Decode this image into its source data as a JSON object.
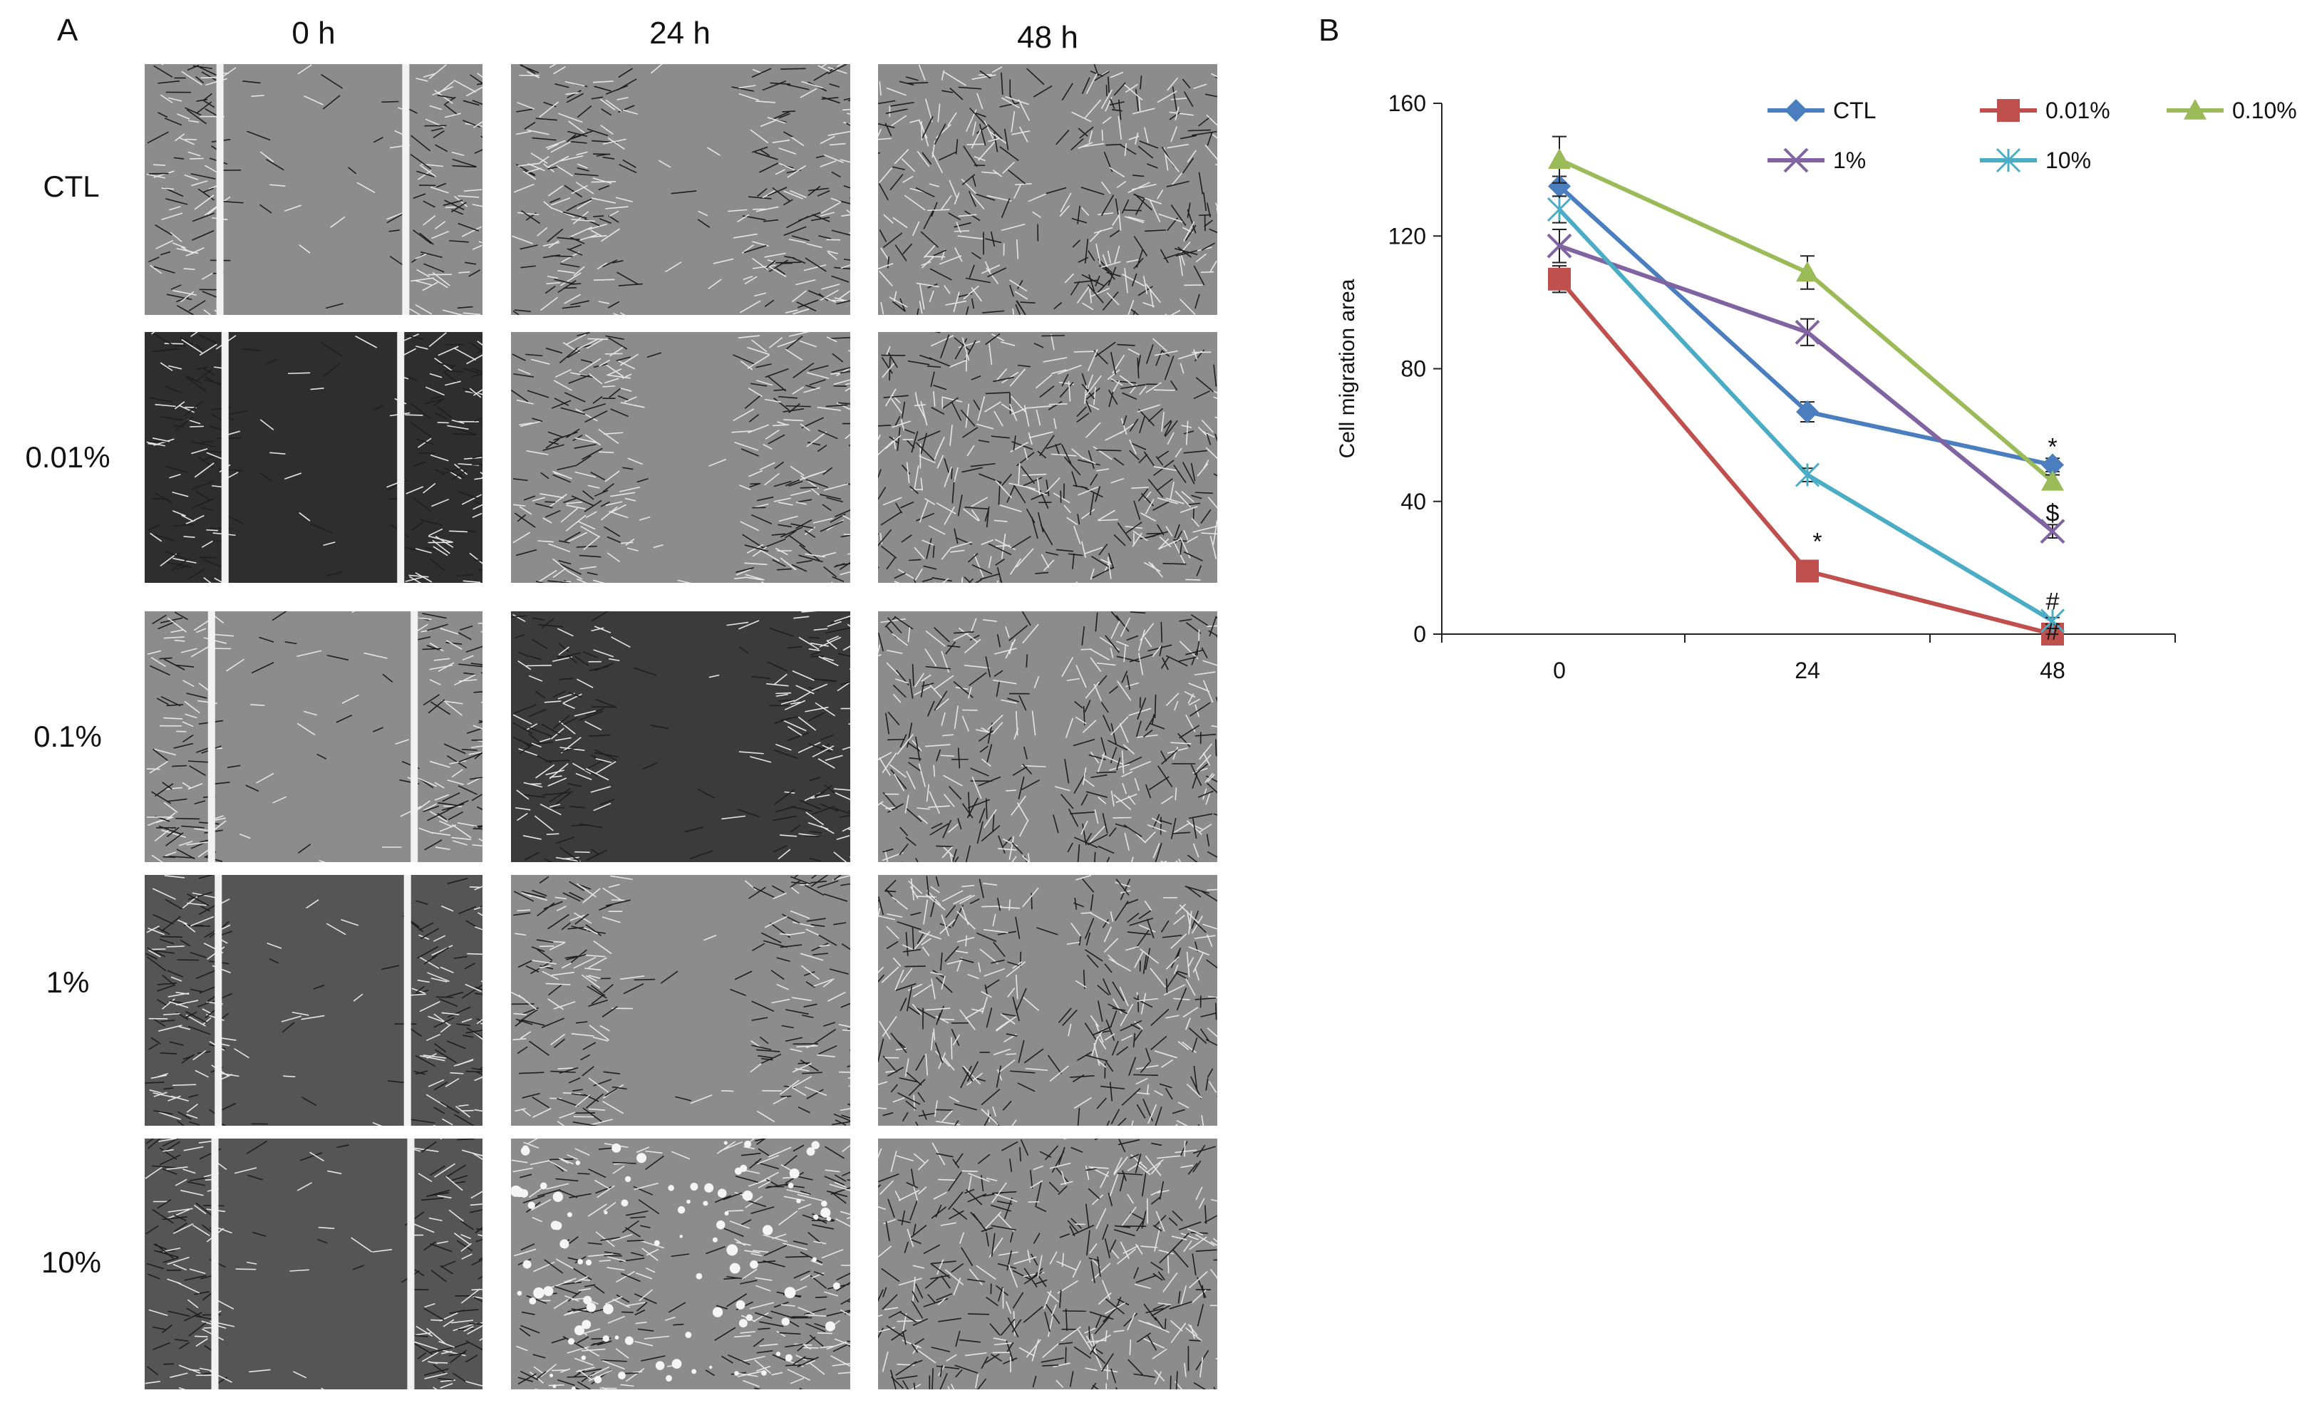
{
  "panels": {
    "a_label": "A",
    "b_label": "B"
  },
  "micrographs": {
    "columns": [
      "0 h",
      "24 h",
      "48 h"
    ],
    "rows": [
      "CTL",
      "0.01%",
      "0.1%",
      "1%",
      "10%"
    ]
  },
  "colors": {
    "CTL": "#4a7ebf",
    "0.01%": "#c0504d",
    "0.10%": "#9bbb59",
    "1%": "#8064a2",
    "10%": "#4bacc6"
  },
  "chart_data": {
    "type": "line",
    "ylabel": "Cell migration area",
    "xlabel": "",
    "categories": [
      "0",
      "24",
      "48"
    ],
    "ylim": [
      0,
      160
    ],
    "yticks": [
      "0",
      "40",
      "80",
      "120",
      "160"
    ],
    "legend_position": "top-right",
    "grid": false,
    "series": [
      {
        "name": "CTL",
        "values": [
          135,
          67,
          51
        ],
        "errors": [
          3,
          3,
          2
        ],
        "marker": "diamond",
        "color": "#4a7ebf"
      },
      {
        "name": "0.01%",
        "values": [
          107,
          19,
          0
        ],
        "errors": [
          4,
          2,
          1
        ],
        "marker": "square",
        "color": "#c0504d"
      },
      {
        "name": "0.10%",
        "values": [
          143,
          109,
          46
        ],
        "errors": [
          7,
          5,
          2
        ],
        "marker": "triangle",
        "color": "#9bbb59"
      },
      {
        "name": "1%",
        "values": [
          117,
          91,
          31
        ],
        "errors": [
          5,
          4,
          2
        ],
        "marker": "x",
        "color": "#8064a2"
      },
      {
        "name": "10%",
        "values": [
          128,
          48,
          4
        ],
        "errors": [
          4,
          2,
          1
        ],
        "marker": "star",
        "color": "#4bacc6"
      }
    ],
    "annotations": [
      {
        "text": "*",
        "x": "24",
        "y": 19
      },
      {
        "text": "*",
        "x": "48",
        "y": 51
      },
      {
        "text": "$",
        "x": "48",
        "y": 31
      },
      {
        "text": "#",
        "x": "48",
        "y": 4
      },
      {
        "text": "#",
        "x": "48",
        "y": 0
      }
    ]
  }
}
